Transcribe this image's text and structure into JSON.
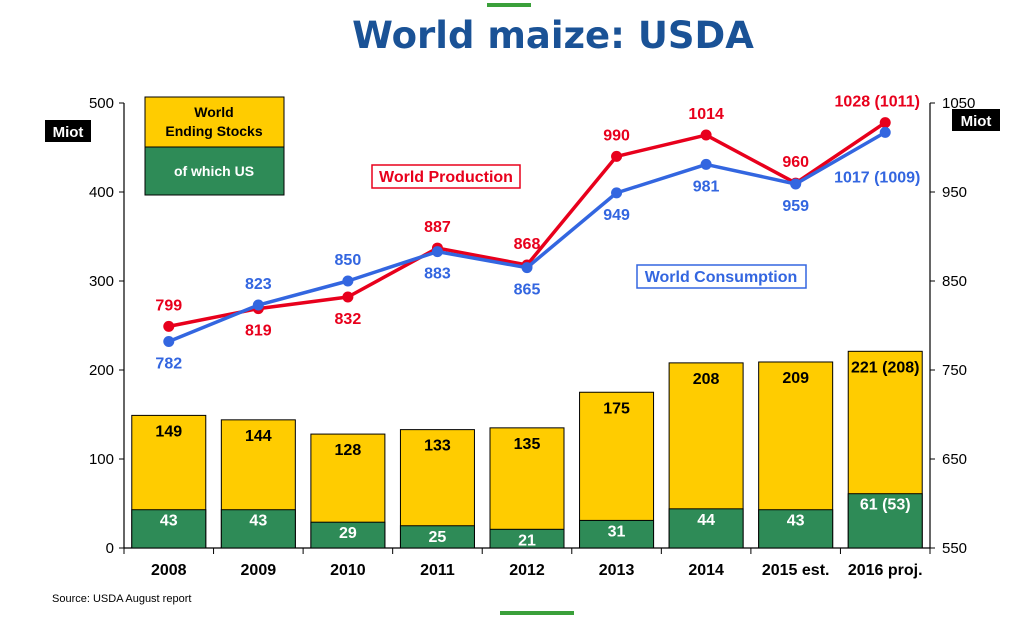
{
  "title": "World maize: USDA",
  "source": "Source: USDA August report",
  "colors": {
    "stocks": "#FFCC00",
    "us": "#2E8B57",
    "production": "#E8001C",
    "consumption": "#3366E0",
    "title": "#1A5296",
    "accent": "#3AA03A"
  },
  "chart_data": {
    "type": "bar",
    "categories": [
      "2008",
      "2009",
      "2010",
      "2011",
      "2012",
      "2013",
      "2014",
      "2015 est.",
      "2016 proj."
    ],
    "left_axis": {
      "unit": "Miot",
      "ylim": [
        0,
        500
      ],
      "ticks": [
        "0",
        "100",
        "200",
        "300",
        "400",
        "500"
      ]
    },
    "right_axis": {
      "unit": "Miot",
      "ylim": [
        550,
        1050
      ],
      "ticks": [
        "550",
        "650",
        "750",
        "850",
        "950",
        "1050"
      ]
    },
    "legend": {
      "stocks": "World\nEnding Stocks",
      "us": "of which US",
      "position": "top-left"
    },
    "bars": [
      {
        "name": "World Ending Stocks",
        "values": [
          149,
          144,
          128,
          133,
          135,
          175,
          208,
          209,
          221
        ],
        "labels": [
          "149",
          "144",
          "128",
          "133",
          "135",
          "175",
          "208",
          "209",
          "221 (208)"
        ]
      },
      {
        "name": "of which US",
        "values": [
          43,
          43,
          29,
          25,
          21,
          31,
          44,
          43,
          61
        ],
        "labels": [
          "43",
          "43",
          "29",
          "25",
          "21",
          "31",
          "44",
          "43",
          "61 (53)"
        ]
      }
    ],
    "lines": [
      {
        "name": "World Production",
        "axis": "right",
        "values": [
          799,
          819,
          832,
          887,
          868,
          990,
          1014,
          960,
          1028
        ],
        "labels": [
          "799",
          "819",
          "832",
          "887",
          "868",
          "990",
          "1014",
          "960",
          "1028 (1011)"
        ]
      },
      {
        "name": "World Consumption",
        "axis": "right",
        "values": [
          782,
          823,
          850,
          883,
          865,
          949,
          981,
          959,
          1017
        ],
        "labels": [
          "782",
          "823",
          "850",
          "883",
          "865",
          "949",
          "981",
          "959",
          "1017 (1009)"
        ]
      }
    ]
  }
}
